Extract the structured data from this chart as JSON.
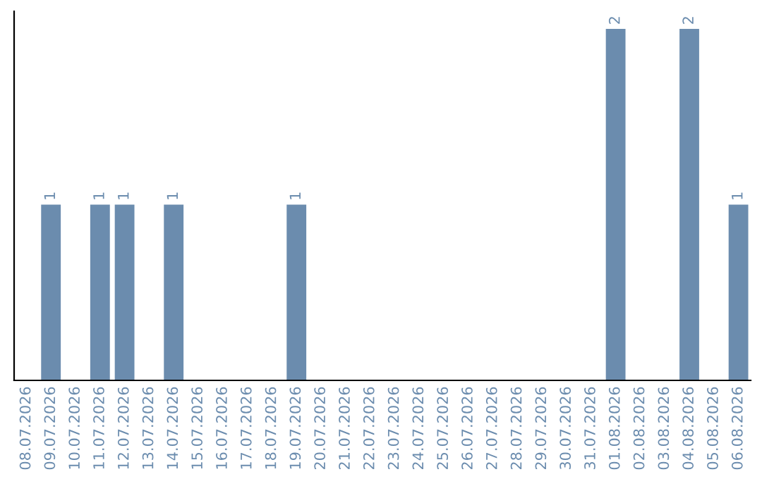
{
  "chart_data": {
    "type": "bar",
    "categories": [
      "08.07.2026",
      "09.07.2026",
      "10.07.2026",
      "11.07.2026",
      "12.07.2026",
      "13.07.2026",
      "14.07.2026",
      "15.07.2026",
      "16.07.2026",
      "17.07.2026",
      "18.07.2026",
      "19.07.2026",
      "20.07.2026",
      "21.07.2026",
      "22.07.2026",
      "23.07.2026",
      "24.07.2026",
      "25.07.2026",
      "26.07.2026",
      "27.07.2026",
      "28.07.2026",
      "29.07.2026",
      "30.07.2026",
      "31.07.2026",
      "01.08.2026",
      "02.08.2026",
      "03.08.2026",
      "04.08.2026",
      "05.08.2026",
      "06.08.2026"
    ],
    "values": [
      0,
      1,
      0,
      1,
      1,
      0,
      1,
      0,
      0,
      0,
      0,
      1,
      0,
      0,
      0,
      0,
      0,
      0,
      0,
      0,
      0,
      0,
      0,
      0,
      2,
      0,
      0,
      2,
      0,
      1
    ],
    "value_labels": [
      null,
      "1",
      null,
      "1",
      "1",
      null,
      "1",
      null,
      null,
      null,
      null,
      "1",
      null,
      null,
      null,
      null,
      null,
      null,
      null,
      null,
      null,
      null,
      null,
      null,
      "2",
      null,
      null,
      "2",
      null,
      "1"
    ],
    "color": "#6b8cae",
    "ylim": [
      0,
      2.1
    ],
    "tick_labels": "x",
    "grid": false,
    "legend": false
  }
}
